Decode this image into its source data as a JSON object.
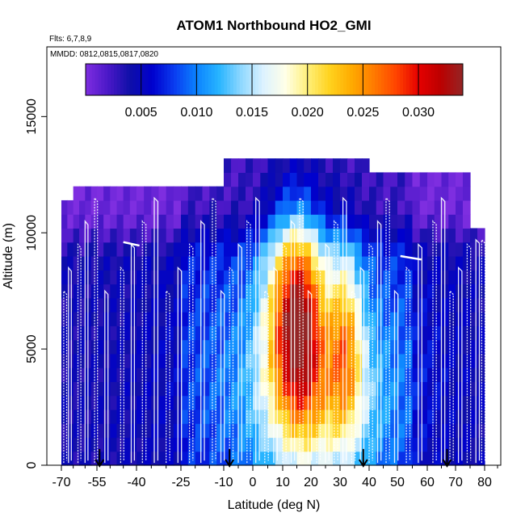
{
  "chart_data": {
    "type": "heatmap",
    "title": "ATOM1 Northbound HO2_GMI",
    "subtitle_flights": "Flts: 6,7,8,9",
    "subtitle_dates": "MMDD: 0812,0815,0817,0820",
    "xlabel": "Latitude (deg N)",
    "ylabel": "Altitude (m)",
    "xlim": [
      -70,
      85
    ],
    "ylim": [
      0,
      18000
    ],
    "x_ticks": [
      -70,
      -55,
      -40,
      -25,
      -10,
      0,
      10,
      20,
      30,
      40,
      50,
      60,
      70,
      80
    ],
    "x_tick_labels": [
      "-70",
      "-55",
      "-40",
      "-25",
      "-10",
      "0",
      "10",
      "20",
      "30",
      "40",
      "50",
      "60",
      "70",
      "80"
    ],
    "y_ticks": [
      0,
      5000,
      10000,
      15000
    ],
    "y_tick_labels": [
      "0",
      "5000",
      "10000",
      "15000"
    ],
    "colorbar": {
      "range": [
        0.0,
        0.034
      ],
      "ticks": [
        0.005,
        0.01,
        0.015,
        0.02,
        0.025,
        0.03
      ],
      "tick_labels": [
        "0.005",
        "0.010",
        "0.015",
        "0.020",
        "0.025",
        "0.030"
      ],
      "colors": [
        "#7e2ee0",
        "#4b18c8",
        "#0f0fa8",
        "#0000cd",
        "#0a3cf0",
        "#0b83ff",
        "#27b4ff",
        "#8ed8ff",
        "#dcf2ff",
        "#ffffe8",
        "#fff07a",
        "#ffd21e",
        "#ffaa00",
        "#ff7a00",
        "#ff4400",
        "#e60000",
        "#bb0000",
        "#942525"
      ]
    },
    "flight_arrow_latitudes": [
      -54,
      -8,
      38,
      67
    ],
    "field_description": "HO2 mixing ratio along the flight curtain; high values in the tropics 0-40N below 11000 m, low values at high latitudes and aloft"
  },
  "colors": {
    "track": "#ffffff",
    "arrow": "#000000",
    "frame": "#000000"
  }
}
